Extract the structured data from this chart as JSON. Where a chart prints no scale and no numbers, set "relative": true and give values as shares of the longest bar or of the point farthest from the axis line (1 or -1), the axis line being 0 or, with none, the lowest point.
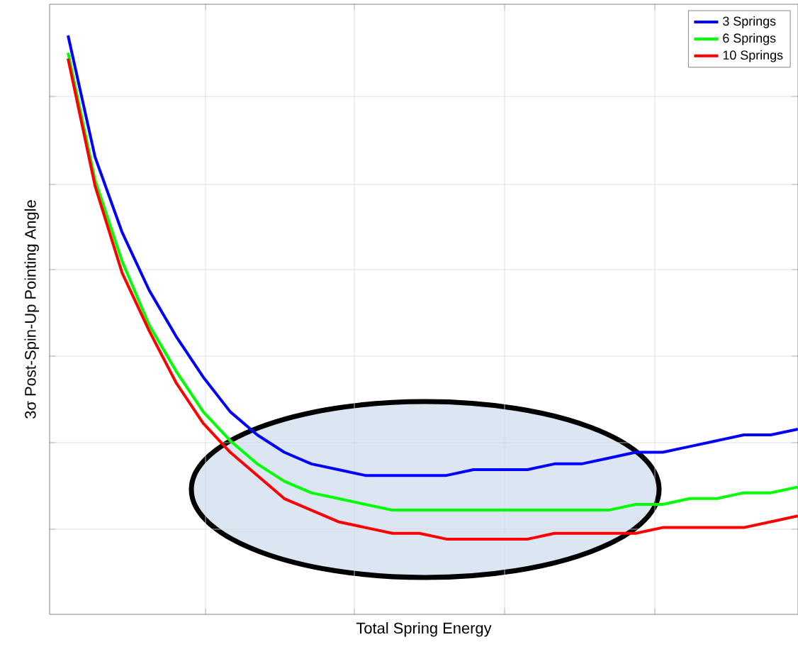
{
  "chart_data": {
    "type": "line",
    "relative": true,
    "xlabel": "Total Spring Energy",
    "ylabel": "3σ Post-Spin-Up Pointing Angle",
    "grid": true,
    "legend": "top right",
    "marker": "none",
    "line_style": "solid",
    "categories": [
      null,
      null,
      null,
      null,
      null,
      null,
      null,
      null,
      null,
      null,
      null,
      null,
      null,
      null,
      null,
      null,
      null,
      null,
      null,
      null,
      null,
      null,
      null,
      null,
      null,
      null,
      null,
      null
    ],
    "series": [
      {
        "name": "3 Springs",
        "color": "#0000ff",
        "values": [
          1.0,
          0.79,
          0.66,
          0.56,
          0.48,
          0.41,
          0.35,
          0.31,
          0.28,
          0.26,
          0.25,
          0.24,
          0.24,
          0.24,
          0.24,
          0.25,
          0.25,
          0.25,
          0.26,
          0.26,
          0.27,
          0.28,
          0.28,
          0.29,
          0.3,
          0.31,
          0.31,
          0.32
        ]
      },
      {
        "name": "6 Springs",
        "color": "#00ff00",
        "values": [
          0.97,
          0.75,
          0.61,
          0.5,
          0.42,
          0.35,
          0.3,
          0.26,
          0.23,
          0.21,
          0.2,
          0.19,
          0.18,
          0.18,
          0.18,
          0.18,
          0.18,
          0.18,
          0.18,
          0.18,
          0.18,
          0.19,
          0.19,
          0.2,
          0.2,
          0.21,
          0.21,
          0.22
        ]
      },
      {
        "name": "10 Springs",
        "color": "#ff0000",
        "values": [
          0.96,
          0.74,
          0.59,
          0.49,
          0.4,
          0.33,
          0.28,
          0.24,
          0.2,
          0.18,
          0.16,
          0.15,
          0.14,
          0.14,
          0.13,
          0.13,
          0.13,
          0.13,
          0.14,
          0.14,
          0.14,
          0.14,
          0.15,
          0.15,
          0.15,
          0.15,
          0.16,
          0.17
        ]
      }
    ]
  }
}
